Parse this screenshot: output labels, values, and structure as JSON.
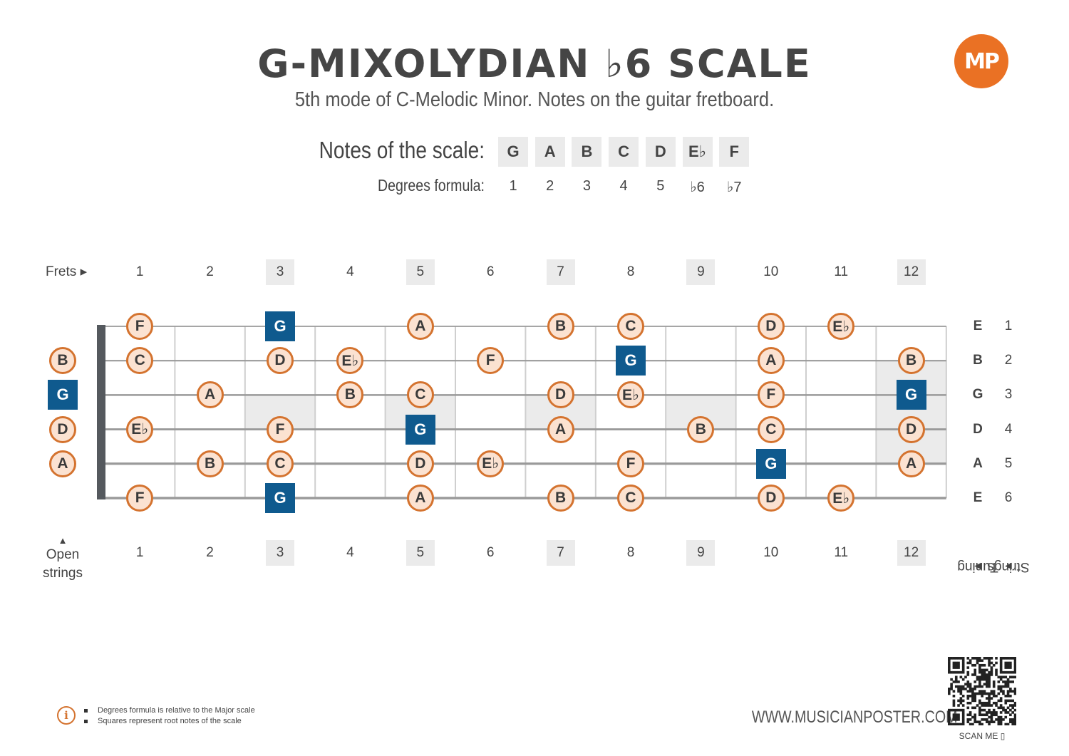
{
  "header": {
    "title": "G-MIXOLYDIAN ♭6 SCALE",
    "subtitle": "5th mode of C-Melodic Minor. Notes on the guitar fretboard.",
    "logo_text": "MP"
  },
  "scale": {
    "notes_label": "Notes of the scale:",
    "degrees_label": "Degrees formula:",
    "notes": [
      "G",
      "A",
      "B",
      "C",
      "D",
      "E♭",
      "F"
    ],
    "degrees": [
      "1",
      "2",
      "3",
      "4",
      "5",
      "♭6",
      "♭7"
    ]
  },
  "fretboard": {
    "frets_label": "Frets",
    "fret_numbers": [
      "1",
      "2",
      "3",
      "4",
      "5",
      "6",
      "7",
      "8",
      "9",
      "10",
      "11",
      "12"
    ],
    "marked_frets": [
      3,
      5,
      7,
      9,
      12
    ],
    "open_strings_label_line1": "Open",
    "open_strings_label_line2": "strings",
    "tuning_label": "Tuning",
    "strings_label": "Strings",
    "tuning": [
      "E",
      "B",
      "G",
      "D",
      "A",
      "E"
    ],
    "string_numbers": [
      "1",
      "2",
      "3",
      "4",
      "5",
      "6"
    ],
    "positions": [
      {
        "string": 1,
        "fret": 1,
        "note": "F",
        "root": false
      },
      {
        "string": 1,
        "fret": 3,
        "note": "G",
        "root": true
      },
      {
        "string": 1,
        "fret": 5,
        "note": "A",
        "root": false
      },
      {
        "string": 1,
        "fret": 7,
        "note": "B",
        "root": false
      },
      {
        "string": 1,
        "fret": 8,
        "note": "C",
        "root": false
      },
      {
        "string": 1,
        "fret": 10,
        "note": "D",
        "root": false
      },
      {
        "string": 1,
        "fret": 11,
        "note": "E♭",
        "root": false
      },
      {
        "string": 2,
        "fret": 0,
        "note": "B",
        "root": false
      },
      {
        "string": 2,
        "fret": 1,
        "note": "C",
        "root": false
      },
      {
        "string": 2,
        "fret": 3,
        "note": "D",
        "root": false
      },
      {
        "string": 2,
        "fret": 4,
        "note": "E♭",
        "root": false
      },
      {
        "string": 2,
        "fret": 6,
        "note": "F",
        "root": false
      },
      {
        "string": 2,
        "fret": 8,
        "note": "G",
        "root": true
      },
      {
        "string": 2,
        "fret": 10,
        "note": "A",
        "root": false
      },
      {
        "string": 2,
        "fret": 12,
        "note": "B",
        "root": false
      },
      {
        "string": 3,
        "fret": 0,
        "note": "G",
        "root": true
      },
      {
        "string": 3,
        "fret": 2,
        "note": "A",
        "root": false
      },
      {
        "string": 3,
        "fret": 4,
        "note": "B",
        "root": false
      },
      {
        "string": 3,
        "fret": 5,
        "note": "C",
        "root": false
      },
      {
        "string": 3,
        "fret": 7,
        "note": "D",
        "root": false
      },
      {
        "string": 3,
        "fret": 8,
        "note": "E♭",
        "root": false
      },
      {
        "string": 3,
        "fret": 10,
        "note": "F",
        "root": false
      },
      {
        "string": 3,
        "fret": 12,
        "note": "G",
        "root": true
      },
      {
        "string": 4,
        "fret": 0,
        "note": "D",
        "root": false
      },
      {
        "string": 4,
        "fret": 1,
        "note": "E♭",
        "root": false
      },
      {
        "string": 4,
        "fret": 3,
        "note": "F",
        "root": false
      },
      {
        "string": 4,
        "fret": 5,
        "note": "G",
        "root": true
      },
      {
        "string": 4,
        "fret": 7,
        "note": "A",
        "root": false
      },
      {
        "string": 4,
        "fret": 9,
        "note": "B",
        "root": false
      },
      {
        "string": 4,
        "fret": 10,
        "note": "C",
        "root": false
      },
      {
        "string": 4,
        "fret": 12,
        "note": "D",
        "root": false
      },
      {
        "string": 5,
        "fret": 0,
        "note": "A",
        "root": false
      },
      {
        "string": 5,
        "fret": 2,
        "note": "B",
        "root": false
      },
      {
        "string": 5,
        "fret": 3,
        "note": "C",
        "root": false
      },
      {
        "string": 5,
        "fret": 5,
        "note": "D",
        "root": false
      },
      {
        "string": 5,
        "fret": 6,
        "note": "E♭",
        "root": false
      },
      {
        "string": 5,
        "fret": 8,
        "note": "F",
        "root": false
      },
      {
        "string": 5,
        "fret": 10,
        "note": "G",
        "root": true
      },
      {
        "string": 5,
        "fret": 12,
        "note": "A",
        "root": false
      },
      {
        "string": 6,
        "fret": 1,
        "note": "F",
        "root": false
      },
      {
        "string": 6,
        "fret": 3,
        "note": "G",
        "root": true
      },
      {
        "string": 6,
        "fret": 5,
        "note": "A",
        "root": false
      },
      {
        "string": 6,
        "fret": 7,
        "note": "B",
        "root": false
      },
      {
        "string": 6,
        "fret": 8,
        "note": "C",
        "root": false
      },
      {
        "string": 6,
        "fret": 10,
        "note": "D",
        "root": false
      },
      {
        "string": 6,
        "fret": 11,
        "note": "E♭",
        "root": false
      }
    ]
  },
  "footer": {
    "info_icon": "info-icon",
    "info_lines": [
      "Degrees formula is relative to the Major scale",
      "Squares represent root notes of the scale"
    ],
    "website": "WWW.MUSICIANPOSTER.COM",
    "scan_me": "SCAN ME"
  },
  "colors": {
    "accent": "#ea7124",
    "note_fill": "#fbe2d1",
    "note_border": "#d4732f",
    "root": "#0f5a8e",
    "marker_bg": "#ebebeb"
  }
}
